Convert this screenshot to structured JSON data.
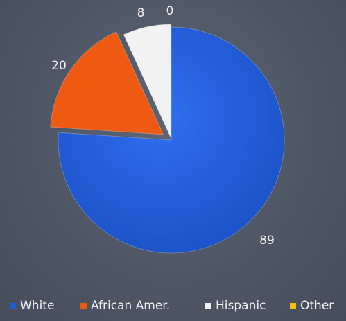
{
  "chart_data": {
    "type": "pie",
    "categories": [
      "White",
      "African Amer.",
      "Hispanic",
      "Other"
    ],
    "values": [
      89,
      20,
      8,
      0
    ],
    "colors": [
      "#1f5bd6",
      "#ee5a12",
      "#f2f2f2",
      "#f4c20d"
    ],
    "legend": "bottom",
    "data_labels": [
      "89",
      "20",
      "8",
      "0"
    ]
  }
}
